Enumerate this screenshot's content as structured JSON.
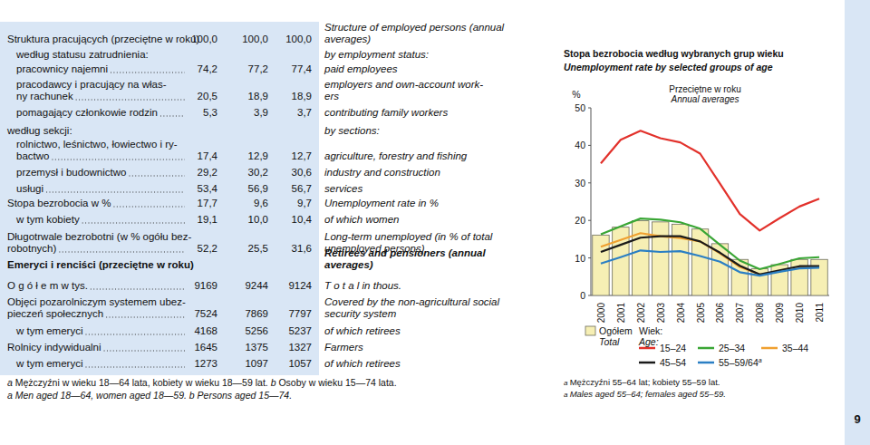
{
  "table": {
    "rows": [
      {
        "pl": [
          "Struktura pracujących (przeciętne w roku)"
        ],
        "values": [
          "100,0",
          "100,0",
          "100,0"
        ],
        "en": [
          "Structure of employed persons (annual",
          "averages)"
        ]
      },
      {
        "pl": [
          "według statusu zatrudnienia:"
        ],
        "values": null,
        "en": [
          "by employment status:"
        ]
      },
      {
        "pl": [
          "pracownicy najemni"
        ],
        "values": [
          "74,2",
          "77,2",
          "77,4"
        ],
        "en": [
          "paid employees"
        ]
      },
      {
        "pl": [
          "pracodawcy i pracujący na włas-",
          "ny rachunek"
        ],
        "values": [
          "20,5",
          "18,9",
          "18,9"
        ],
        "en": [
          "employers and own-account work-",
          "ers"
        ]
      },
      {
        "pl": [
          "pomagający członkowie rodzin"
        ],
        "values": [
          "5,3",
          "3,9",
          "3,7"
        ],
        "en": [
          "contributing family workers"
        ]
      },
      {
        "pl": [
          "według sekcji:"
        ],
        "values": null,
        "en": [
          "by sections:"
        ]
      },
      {
        "pl": [
          "rolnictwo, leśnictwo, łowiectwo i ry-",
          "bactwo"
        ],
        "values": [
          "17,4",
          "12,9",
          "12,7"
        ],
        "en": [
          "agriculture, forestry and fishing"
        ]
      },
      {
        "pl": [
          "przemysł i budownictwo"
        ],
        "values": [
          "29,2",
          "30,2",
          "30,6"
        ],
        "en": [
          "industry and construction"
        ]
      },
      {
        "pl": [
          "usługi"
        ],
        "values": [
          "53,4",
          "56,9",
          "56,7"
        ],
        "en": [
          "services"
        ]
      },
      {
        "pl": [
          "Stopa bezrobocia w %"
        ],
        "values": [
          "17,7",
          "9,6",
          "9,7"
        ],
        "en": [
          "Unemployment rate in %"
        ]
      },
      {
        "pl": [
          "w tym kobiety"
        ],
        "values": [
          "19,1",
          "10,0",
          "10,4"
        ],
        "en": [
          "of which women"
        ]
      },
      {
        "pl": [
          "Długotrwale bezrobotni (w % ogółu bez-",
          "robotnych)"
        ],
        "values": [
          "52,2",
          "25,5",
          "31,6"
        ],
        "en": [
          "Long-term unemployed (in % of total",
          "unemployed persons)"
        ]
      },
      {
        "pl": [
          "Emeryci i renciści (przeciętne w roku)"
        ],
        "values": null,
        "en": [
          "Retirees and pensioners (annual",
          "averages)"
        ]
      },
      {
        "pl": [
          "O g ó ł e m  w tys."
        ],
        "values": [
          "9169",
          "9244",
          "9124"
        ],
        "en": [
          "T o t a l  in thous."
        ]
      },
      {
        "pl": [
          "Objęci pozarolniczym systemem ubez-",
          "pieczeń społecznych"
        ],
        "values": [
          "7524",
          "7869",
          "7797"
        ],
        "en": [
          "Covered by the non-agricultural social",
          "security system"
        ]
      },
      {
        "pl": [
          "w tym emeryci"
        ],
        "values": [
          "4168",
          "5256",
          "5237"
        ],
        "en": [
          "of which retirees"
        ]
      },
      {
        "pl": [
          "Rolnicy indywidualni"
        ],
        "values": [
          "1645",
          "1375",
          "1327"
        ],
        "en": [
          "Farmers"
        ]
      },
      {
        "pl": [
          "w tym emeryci"
        ],
        "values": [
          "1273",
          "1097",
          "1057"
        ],
        "en": [
          "of which retirees"
        ]
      }
    ]
  },
  "footnotes": [
    [
      {
        "mark": "a",
        "text": "Mężczyźni w wieku 18—64 lata, kobiety w wieku 18—59 lat."
      },
      {
        "mark": "b",
        "text": "Osoby w wieku 15—74 lata."
      }
    ],
    [
      {
        "mark": "a",
        "text": "Men aged 18—64, women aged 18—59."
      },
      {
        "mark": "b",
        "text": "Persons aged 15—74."
      }
    ]
  ],
  "chart_data": {
    "type": "line",
    "title": "Stopa bezrobocia według wybranych grup wieku",
    "title_en": "Unemployment rate by selected groups of age",
    "subtitle": "Przeciętne w roku",
    "subtitle_en": "Annual averages",
    "y_label": "%",
    "legend_title": [
      "Wiek:",
      "Age:"
    ],
    "categories": [
      "2000",
      "2001",
      "2002",
      "2003",
      "2004",
      "2005",
      "2006",
      "2007",
      "2008",
      "2009",
      "2010",
      "2011"
    ],
    "ylim": [
      0,
      50
    ],
    "yticks": [
      0,
      10,
      20,
      30,
      40,
      50
    ],
    "grid": false,
    "series": [
      {
        "name": "Ogółem",
        "name_en": "Total",
        "type": "bar",
        "color": "#f6efb4",
        "values": [
          16.1,
          18.2,
          19.9,
          19.6,
          19.0,
          17.7,
          13.8,
          9.6,
          7.1,
          8.2,
          9.6,
          9.6
        ]
      },
      {
        "name": "15–24",
        "type": "line",
        "color": "#e2312b",
        "values": [
          35.2,
          41.5,
          43.9,
          41.9,
          40.8,
          37.8,
          29.8,
          21.7,
          17.3,
          20.6,
          23.7,
          25.8
        ]
      },
      {
        "name": "25–34",
        "type": "line",
        "color": "#3aa635",
        "values": [
          16.3,
          18.4,
          20.5,
          20.2,
          19.5,
          17.8,
          13.5,
          9.3,
          7.0,
          8.4,
          9.9,
          10.2
        ]
      },
      {
        "name": "35–44",
        "type": "line",
        "color": "#f0a030",
        "values": [
          13.0,
          14.8,
          16.6,
          15.8,
          15.3,
          14.4,
          11.2,
          7.6,
          5.6,
          6.4,
          7.6,
          7.5
        ]
      },
      {
        "name": "45–54",
        "type": "line",
        "color": "#1a1a1a",
        "values": [
          11.6,
          13.5,
          15.4,
          15.8,
          15.8,
          14.4,
          11.4,
          7.9,
          5.6,
          6.7,
          7.8,
          7.8
        ]
      },
      {
        "name": "55–59/64",
        "name_note": "a",
        "type": "line",
        "color": "#2b7fc4",
        "values": [
          8.5,
          10.2,
          12.0,
          11.6,
          11.8,
          10.5,
          9.0,
          6.2,
          5.3,
          6.3,
          7.2,
          7.4
        ]
      }
    ],
    "footnotes": [
      {
        "mark": "a",
        "text": "Mężczyźni 55–64 lat; kobiety 55–59 lat."
      },
      {
        "mark": "a",
        "text": "Males aged 55–64; females aged 55–59."
      }
    ]
  },
  "page_number": 9
}
